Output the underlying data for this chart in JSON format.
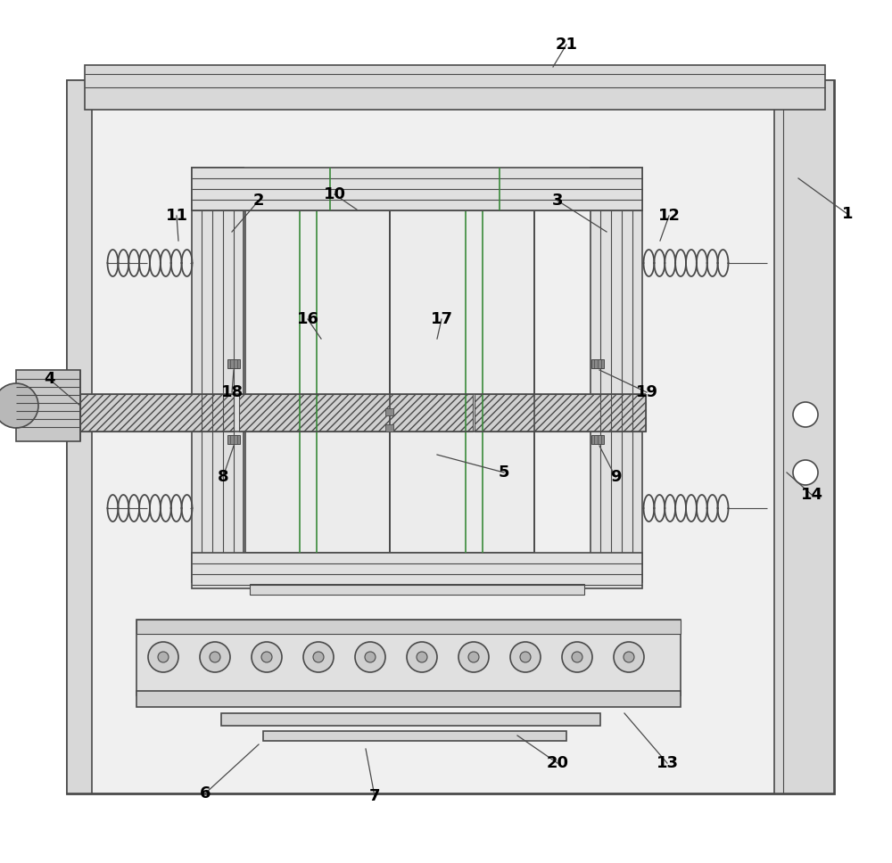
{
  "bg_color": "#ffffff",
  "line_color": "#4a4a4a",
  "thin_line": 0.8,
  "med_line": 1.2,
  "thick_line": 2.0,
  "spring_color": "#4a4a4a",
  "green_line_color": "#3a8a3a",
  "labels_data": [
    [
      "1",
      950,
      240,
      895,
      200
    ],
    [
      "2",
      290,
      225,
      260,
      260
    ],
    [
      "3",
      625,
      225,
      680,
      260
    ],
    [
      "4",
      55,
      425,
      90,
      455
    ],
    [
      "5",
      565,
      530,
      490,
      510
    ],
    [
      "6",
      230,
      890,
      290,
      835
    ],
    [
      "7",
      420,
      893,
      410,
      840
    ],
    [
      "8",
      250,
      535,
      262,
      500
    ],
    [
      "9",
      690,
      535,
      672,
      500
    ],
    [
      "10",
      375,
      218,
      400,
      235
    ],
    [
      "11",
      198,
      242,
      200,
      270
    ],
    [
      "12",
      750,
      242,
      740,
      270
    ],
    [
      "13",
      748,
      856,
      700,
      800
    ],
    [
      "14",
      910,
      555,
      882,
      530
    ],
    [
      "16",
      345,
      358,
      360,
      380
    ],
    [
      "17",
      495,
      358,
      490,
      380
    ],
    [
      "18",
      260,
      440,
      262,
      415
    ],
    [
      "19",
      725,
      440,
      672,
      415
    ],
    [
      "20",
      625,
      856,
      580,
      825
    ],
    [
      "21",
      635,
      50,
      620,
      75
    ]
  ]
}
